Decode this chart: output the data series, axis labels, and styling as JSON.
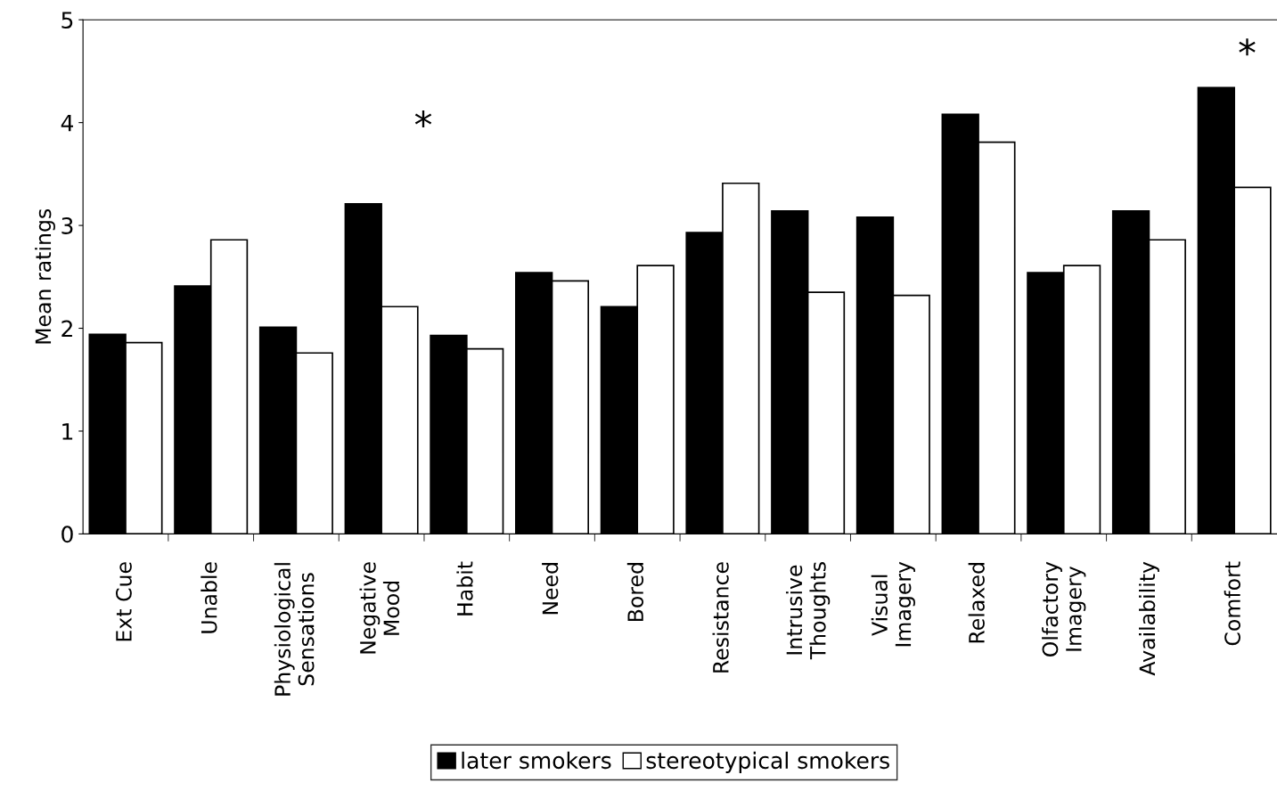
{
  "chart_data": {
    "type": "bar",
    "ylabel": "Mean ratings",
    "categories": [
      "Ext Cue",
      "Unable",
      "Physiological\nSensations",
      "Negative\nMood",
      "Habit",
      "Need",
      "Bored",
      "Resistance",
      "Intrusive\nThoughts",
      "Visual\nImagery",
      "Relaxed",
      "Olfactory\nImagery",
      "Availability",
      "Comfort"
    ],
    "series": [
      {
        "name": "later smokers",
        "color": "#000000",
        "values": [
          1.94,
          2.41,
          2.01,
          3.21,
          1.93,
          2.54,
          2.21,
          2.93,
          3.14,
          3.08,
          4.08,
          2.54,
          3.14,
          4.34
        ]
      },
      {
        "name": "stereotypical smokers",
        "color": "#ffffff",
        "values": [
          1.86,
          2.86,
          1.76,
          2.21,
          1.8,
          2.46,
          2.61,
          3.41,
          2.35,
          2.32,
          3.81,
          2.61,
          2.86,
          3.37
        ]
      }
    ],
    "ylim": [
      0,
      5
    ],
    "yticks": [
      0,
      1,
      2,
      3,
      4,
      5
    ],
    "grid": false,
    "legend": "bottom",
    "annotations": [
      "*",
      "*"
    ]
  }
}
